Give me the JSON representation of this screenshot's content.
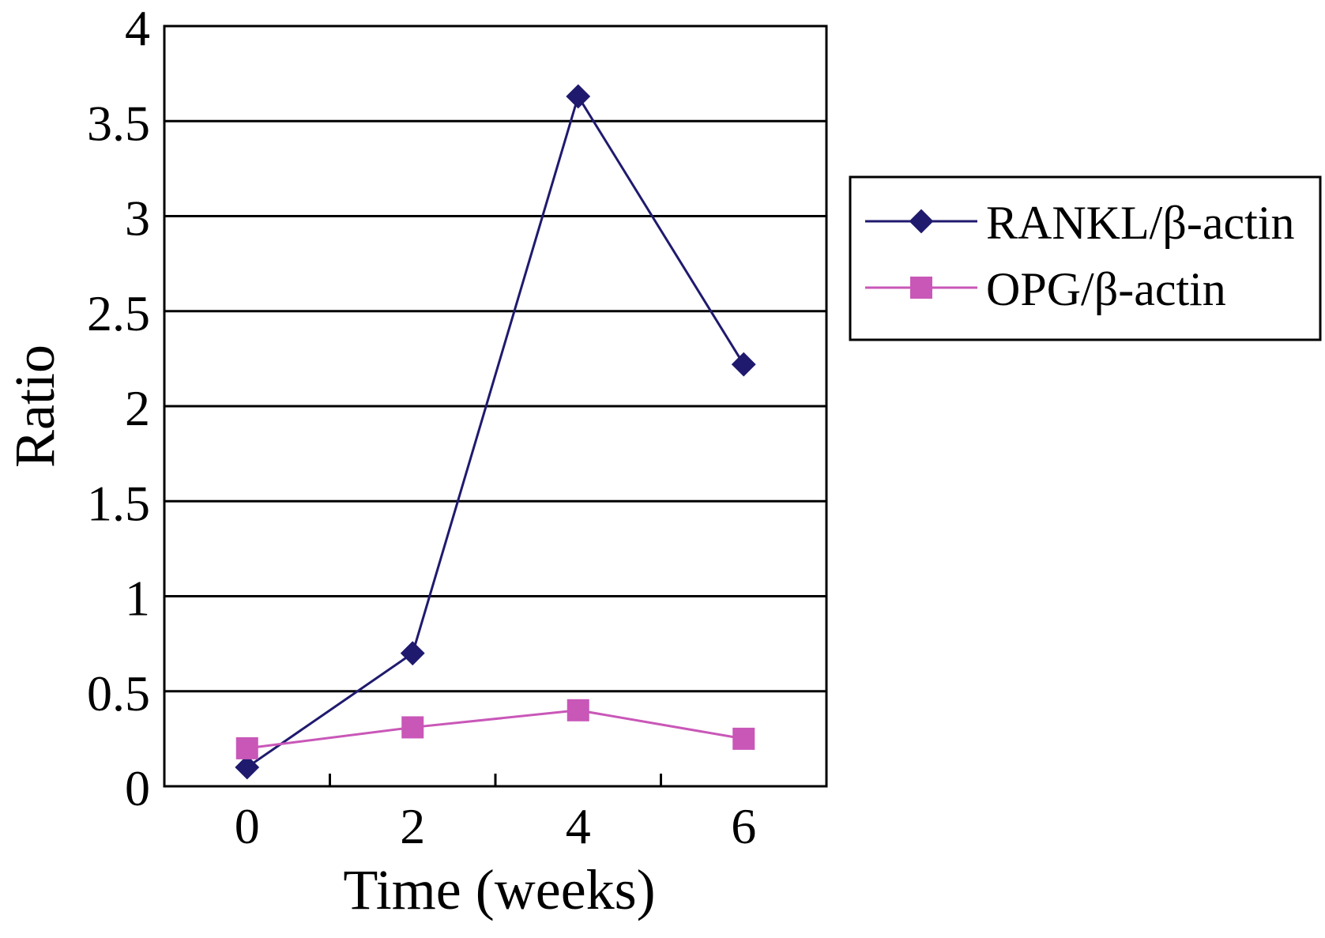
{
  "chart_data": {
    "type": "line",
    "title": "",
    "xlabel": "Time (weeks)",
    "ylabel": "Ratio",
    "x": [
      0,
      2,
      4,
      6
    ],
    "x_tick_labels": [
      "0",
      "2",
      "4",
      "6"
    ],
    "y_tick_labels": [
      "0",
      "0.5",
      "1",
      "1.5",
      "2",
      "2.5",
      "3",
      "3.5",
      "4"
    ],
    "ylim": [
      0,
      4
    ],
    "grid": "horizontal",
    "legend_position": "right",
    "series": [
      {
        "name": "RANKL/β-actin",
        "values": [
          0.1,
          0.7,
          3.63,
          2.22
        ],
        "color": "#1f1a6e",
        "marker": "diamond"
      },
      {
        "name": "OPG/β-actin",
        "values": [
          0.2,
          0.31,
          0.4,
          0.25
        ],
        "color": "#c957b8",
        "marker": "square"
      }
    ]
  }
}
